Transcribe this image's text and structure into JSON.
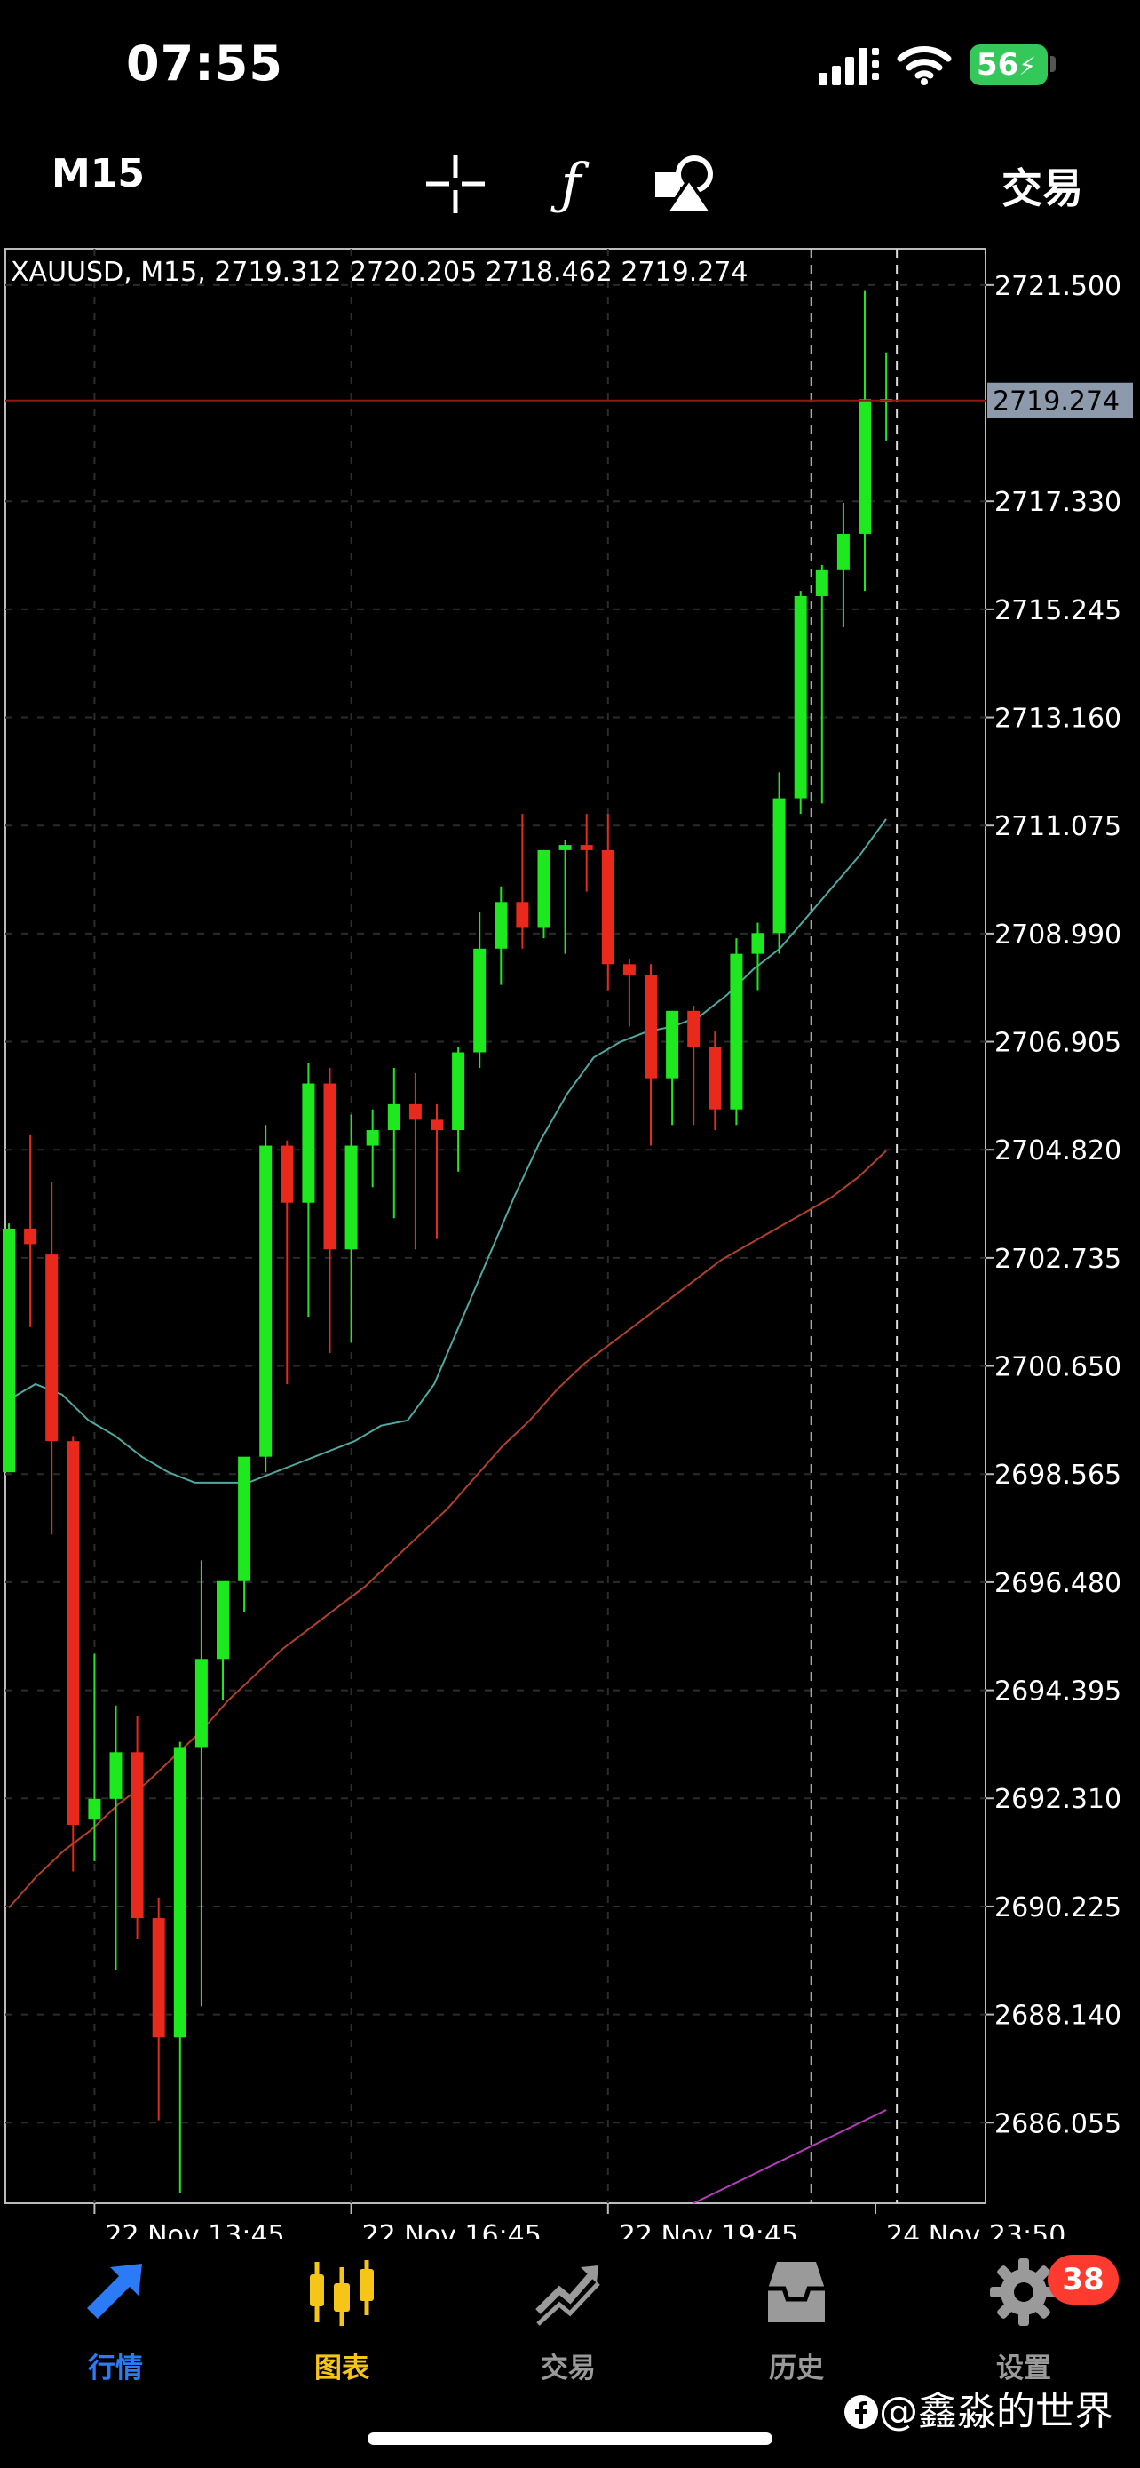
{
  "status": {
    "time": "07:55",
    "battery": "56"
  },
  "toolbar": {
    "timeframe": "M15",
    "trade_label": "交易"
  },
  "chart_data": {
    "type": "candlestick",
    "title": "XAUUSD, M15, 2719.312 2720.205 2718.462 2719.274",
    "symbol": "XAUUSD",
    "timeframe": "M15",
    "ohlc_header": [
      "2719.312",
      "2720.205",
      "2718.462",
      "2719.274"
    ],
    "current_price": 2719.274,
    "current_price_label": "2719.274",
    "ylim": [
      2684.5,
      2722.2
    ],
    "y_ticks": [
      "2721.500",
      "2717.330",
      "2715.245",
      "2713.160",
      "2711.075",
      "2708.990",
      "2706.905",
      "2704.820",
      "2702.735",
      "2700.650",
      "2698.565",
      "2696.480",
      "2694.395",
      "2692.310",
      "2690.225",
      "2688.140",
      "2686.055"
    ],
    "x_ticks": [
      "22 Nov 13:45",
      "22 Nov 16:45",
      "22 Nov 19:45",
      "24 Nov 23:50"
    ],
    "colors": {
      "bull": "#1ee81e",
      "bear": "#e8291c",
      "ma_fast": "#4fa9a0",
      "ma_slow": "#b3402b",
      "ma_long": "#b63ebd",
      "price_line": "#8e1a12",
      "grid": "#2c2c2c"
    },
    "candles": [
      {
        "o": 2698.6,
        "h": 2703.4,
        "l": 2698.6,
        "c": 2703.3
      },
      {
        "o": 2703.3,
        "h": 2705.1,
        "l": 2701.4,
        "c": 2703.0
      },
      {
        "o": 2702.8,
        "h": 2704.2,
        "l": 2697.4,
        "c": 2699.2
      },
      {
        "o": 2699.2,
        "h": 2699.3,
        "l": 2690.9,
        "c": 2691.8
      },
      {
        "o": 2691.9,
        "h": 2695.1,
        "l": 2691.1,
        "c": 2692.3
      },
      {
        "o": 2692.3,
        "h": 2694.1,
        "l": 2689.0,
        "c": 2693.2
      },
      {
        "o": 2693.2,
        "h": 2693.9,
        "l": 2689.6,
        "c": 2690.0
      },
      {
        "o": 2690.0,
        "h": 2690.4,
        "l": 2686.1,
        "c": 2687.7
      },
      {
        "o": 2687.7,
        "h": 2693.4,
        "l": 2684.7,
        "c": 2693.3
      },
      {
        "o": 2693.3,
        "h": 2696.9,
        "l": 2688.3,
        "c": 2695.0
      },
      {
        "o": 2695.0,
        "h": 2696.3,
        "l": 2694.2,
        "c": 2696.5
      },
      {
        "o": 2696.5,
        "h": 2698.7,
        "l": 2695.9,
        "c": 2698.9
      },
      {
        "o": 2698.9,
        "h": 2705.3,
        "l": 2698.6,
        "c": 2704.9
      },
      {
        "o": 2704.9,
        "h": 2705.0,
        "l": 2700.3,
        "c": 2703.8
      },
      {
        "o": 2703.8,
        "h": 2706.5,
        "l": 2701.6,
        "c": 2706.1
      },
      {
        "o": 2706.1,
        "h": 2706.4,
        "l": 2700.9,
        "c": 2702.9
      },
      {
        "o": 2702.9,
        "h": 2705.5,
        "l": 2701.1,
        "c": 2704.9
      },
      {
        "o": 2704.9,
        "h": 2705.6,
        "l": 2704.1,
        "c": 2705.2
      },
      {
        "o": 2705.2,
        "h": 2706.4,
        "l": 2703.5,
        "c": 2705.7
      },
      {
        "o": 2705.7,
        "h": 2706.3,
        "l": 2702.9,
        "c": 2705.4
      },
      {
        "o": 2705.4,
        "h": 2705.7,
        "l": 2703.1,
        "c": 2705.2
      },
      {
        "o": 2705.2,
        "h": 2706.8,
        "l": 2704.4,
        "c": 2706.7
      },
      {
        "o": 2706.7,
        "h": 2709.4,
        "l": 2706.4,
        "c": 2708.7
      },
      {
        "o": 2708.7,
        "h": 2709.9,
        "l": 2708.0,
        "c": 2709.6
      },
      {
        "o": 2709.6,
        "h": 2711.3,
        "l": 2708.7,
        "c": 2709.1
      },
      {
        "o": 2709.1,
        "h": 2710.6,
        "l": 2708.9,
        "c": 2710.6
      },
      {
        "o": 2710.6,
        "h": 2710.8,
        "l": 2708.6,
        "c": 2710.7
      },
      {
        "o": 2710.7,
        "h": 2711.3,
        "l": 2709.8,
        "c": 2710.6
      },
      {
        "o": 2710.6,
        "h": 2711.3,
        "l": 2707.9,
        "c": 2708.4
      },
      {
        "o": 2708.4,
        "h": 2708.5,
        "l": 2707.2,
        "c": 2708.2
      },
      {
        "o": 2708.2,
        "h": 2708.4,
        "l": 2704.9,
        "c": 2706.2
      },
      {
        "o": 2706.2,
        "h": 2707.5,
        "l": 2705.3,
        "c": 2707.5
      },
      {
        "o": 2707.5,
        "h": 2707.6,
        "l": 2705.3,
        "c": 2706.8
      },
      {
        "o": 2706.8,
        "h": 2707.1,
        "l": 2705.2,
        "c": 2705.6
      },
      {
        "o": 2705.6,
        "h": 2708.9,
        "l": 2705.3,
        "c": 2708.6
      },
      {
        "o": 2708.6,
        "h": 2709.2,
        "l": 2707.9,
        "c": 2709.0
      },
      {
        "o": 2709.0,
        "h": 2712.1,
        "l": 2708.6,
        "c": 2711.6
      },
      {
        "o": 2711.6,
        "h": 2715.6,
        "l": 2711.3,
        "c": 2715.5
      },
      {
        "o": 2715.5,
        "h": 2716.1,
        "l": 2711.5,
        "c": 2716.0
      },
      {
        "o": 2716.0,
        "h": 2717.3,
        "l": 2714.9,
        "c": 2716.7
      },
      {
        "o": 2716.7,
        "h": 2721.4,
        "l": 2715.6,
        "c": 2719.3
      },
      {
        "o": 2719.3,
        "h": 2720.2,
        "l": 2718.5,
        "c": 2719.3
      }
    ],
    "ma_fast": [
      2700.0,
      2700.3,
      2700.1,
      2699.6,
      2699.3,
      2698.9,
      2698.6,
      2698.4,
      2698.4,
      2698.4,
      2698.6,
      2698.8,
      2699.0,
      2699.2,
      2699.5,
      2699.6,
      2700.3,
      2701.5,
      2702.7,
      2703.9,
      2705.0,
      2705.9,
      2706.6,
      2706.9,
      2707.1,
      2707.2,
      2707.4,
      2707.8,
      2708.3,
      2708.7,
      2709.3,
      2709.9,
      2710.5,
      2711.2
    ],
    "ma_fast_start": 0,
    "ma_slow": [
      2690.2,
      2690.8,
      2691.3,
      2691.7,
      2692.2,
      2692.6,
      2693.1,
      2693.6,
      2694.2,
      2694.7,
      2695.2,
      2695.6,
      2696.0,
      2696.4,
      2696.9,
      2697.4,
      2697.9,
      2698.5,
      2699.1,
      2699.6,
      2700.2,
      2700.7,
      2701.1,
      2701.5,
      2701.9,
      2702.3,
      2702.7,
      2703.0,
      2703.3,
      2703.6,
      2703.9,
      2704.3,
      2704.8
    ],
    "ma_slow_start": 0,
    "ma_long": [
      2684.5,
      2684.8,
      2685.1,
      2685.4,
      2685.7,
      2686.0,
      2686.3
    ],
    "ma_long_start": 32
  },
  "nav": [
    {
      "label": "行情",
      "color": "#2c7bf6"
    },
    {
      "label": "图表",
      "color": "#f5c518"
    },
    {
      "label": "交易",
      "color": "#9a9a9a"
    },
    {
      "label": "历史",
      "color": "#9a9a9a"
    },
    {
      "label": "设置",
      "color": "#9a9a9a"
    }
  ],
  "settings_badge": "38",
  "watermark": "@鑫淼的世界"
}
